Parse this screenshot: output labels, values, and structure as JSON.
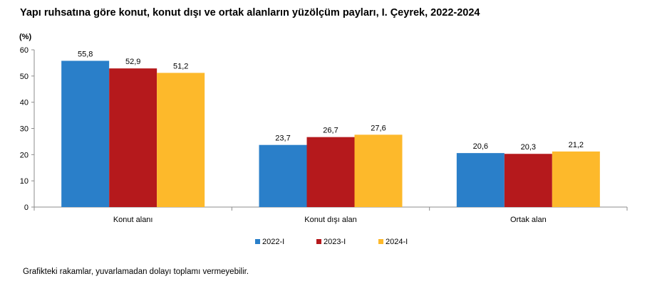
{
  "title": "Yapı ruhsatına göre konut, konut dışı ve ortak alanların yüzölçüm payları, I. Çeyrek, 2022-2024",
  "unit_label": "(%)",
  "note": "Grafikteki rakamlar, yuvarlamadan dolayı toplamı vermeyebilir.",
  "chart_data": {
    "type": "bar",
    "title": "Yapı ruhsatına göre konut, konut dışı ve ortak alanların yüzölçüm payları, I. Çeyrek, 2022-2024",
    "ylabel": "(%)",
    "categories": [
      "Konut alanı",
      "Konut dışı alan",
      "Ortak alan"
    ],
    "series": [
      {
        "name": "2022-I",
        "values": [
          55.8,
          23.7,
          20.6
        ],
        "labels": [
          "55,8",
          "23,7",
          "20,6"
        ],
        "color": "#2a7fc9"
      },
      {
        "name": "2023-I",
        "values": [
          52.9,
          26.7,
          20.3
        ],
        "labels": [
          "52,9",
          "26,7",
          "20,3"
        ],
        "color": "#b5191c"
      },
      {
        "name": "2024-I",
        "values": [
          51.2,
          27.6,
          21.2
        ],
        "labels": [
          "51,2",
          "27,6",
          "21,2"
        ],
        "color": "#fdb92b"
      }
    ],
    "ylim": [
      0,
      60
    ],
    "yticks": [
      0,
      10,
      20,
      30,
      40,
      50,
      60
    ],
    "grid": false,
    "legend_position": "bottom"
  }
}
